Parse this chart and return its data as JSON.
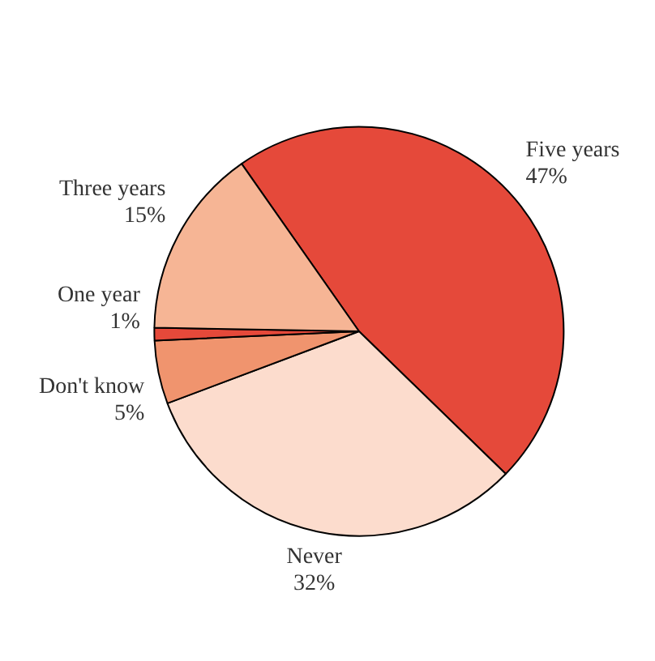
{
  "chart_data": {
    "type": "pie",
    "categories": [
      "Five years",
      "Never",
      "Don't know",
      "One year",
      "Three years"
    ],
    "values": [
      47,
      32,
      5,
      1,
      15
    ],
    "colors": [
      "#e5493a",
      "#fcdccd",
      "#f0946e",
      "#e5493a",
      "#f6b595"
    ],
    "value_labels": [
      "47%",
      "32%",
      "5%",
      "1%",
      "15%"
    ]
  }
}
